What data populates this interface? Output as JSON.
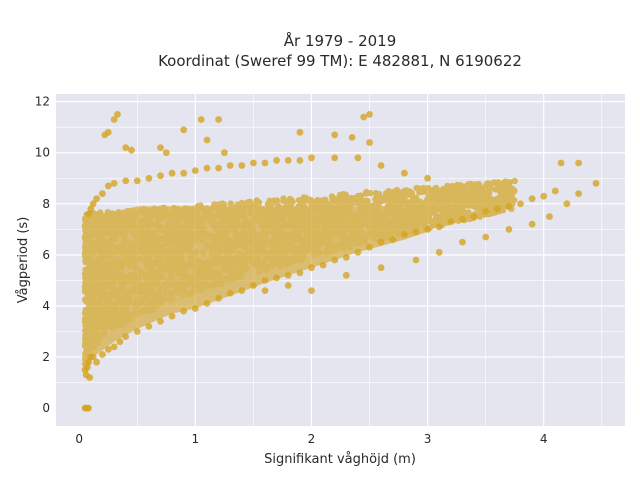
{
  "chart_data": {
    "type": "scatter",
    "title": "År 1979 - 2019",
    "subtitle": "Koordinat (Sweref 99 TM): E 482881, N 6190622",
    "xlabel": "Signifikant våghöjd (m)",
    "ylabel": "Vågperiod (s)",
    "xlim": [
      -0.2,
      4.7
    ],
    "ylim": [
      -0.7,
      12.3
    ],
    "x_ticks": [
      "0",
      "1",
      "2",
      "3",
      "4"
    ],
    "y_ticks": [
      "0",
      "2",
      "4",
      "6",
      "8",
      "10",
      "12"
    ],
    "x_tick_values": [
      0,
      1,
      2,
      3,
      4
    ],
    "y_tick_values": [
      0,
      2,
      4,
      6,
      8,
      10,
      12
    ],
    "grid": true,
    "plot_bgcolor": "#e5e5ef",
    "marker_color": "#d4a422",
    "series": [
      {
        "name": "",
        "x": [
          0.05,
          0.06,
          0.07,
          0.08,
          0.05,
          0.06,
          0.07,
          0.08,
          0.09,
          0.1,
          0.12,
          0.15,
          0.2,
          0.25,
          0.3,
          0.35,
          0.4,
          0.5,
          0.6,
          0.7,
          0.8,
          0.9,
          1.0,
          1.1,
          1.2,
          1.3,
          1.4,
          1.5,
          1.6,
          1.7,
          1.8,
          1.9,
          2.0,
          2.1,
          2.2,
          2.3,
          2.4,
          2.5,
          2.6,
          2.7,
          2.8,
          2.9,
          3.0,
          3.1,
          3.2,
          3.3,
          3.4,
          3.5,
          3.6,
          3.7,
          3.8,
          3.9,
          4.0,
          4.1,
          4.2,
          4.3,
          4.45,
          0.08,
          0.1,
          0.12,
          0.15,
          0.2,
          0.25,
          0.3,
          0.4,
          0.5,
          0.6,
          0.7,
          0.8,
          0.9,
          1.0,
          1.1,
          1.2,
          1.3,
          1.4,
          1.5,
          1.6,
          1.7,
          1.8,
          1.9,
          2.0,
          2.2,
          2.4,
          2.6,
          2.8,
          3.0,
          0.22,
          0.25,
          0.3,
          0.33,
          0.4,
          0.45,
          0.7,
          0.75,
          0.9,
          1.05,
          1.1,
          1.2,
          1.25,
          1.9,
          2.2,
          2.35,
          2.45,
          2.5,
          2.5,
          1.6,
          1.8,
          2.0,
          2.3,
          2.6,
          2.9,
          3.1,
          3.3,
          3.5,
          3.7,
          3.9,
          4.05,
          4.15,
          4.3
        ],
        "y": [
          0.0,
          0.0,
          0.0,
          0.0,
          1.5,
          1.3,
          1.6,
          1.8,
          1.2,
          2.0,
          2.0,
          1.8,
          2.1,
          2.3,
          2.4,
          2.6,
          2.8,
          3.0,
          3.2,
          3.4,
          3.6,
          3.8,
          3.9,
          4.1,
          4.3,
          4.5,
          4.6,
          4.8,
          5.0,
          5.1,
          5.2,
          5.3,
          5.5,
          5.6,
          5.8,
          5.9,
          6.1,
          6.3,
          6.5,
          6.6,
          6.8,
          6.9,
          7.0,
          7.1,
          7.3,
          7.4,
          7.5,
          7.7,
          7.8,
          7.9,
          8.0,
          8.2,
          8.3,
          8.5,
          8.0,
          8.4,
          8.8,
          7.6,
          7.8,
          8.0,
          8.2,
          8.4,
          8.7,
          8.8,
          8.9,
          8.9,
          9.0,
          9.1,
          9.2,
          9.2,
          9.3,
          9.4,
          9.4,
          9.5,
          9.5,
          9.6,
          9.6,
          9.7,
          9.7,
          9.7,
          9.8,
          9.8,
          9.8,
          9.5,
          9.2,
          9.0,
          10.7,
          10.8,
          11.3,
          11.5,
          10.2,
          10.1,
          10.2,
          10.0,
          10.9,
          11.3,
          10.5,
          11.3,
          10.0,
          10.8,
          10.7,
          10.6,
          11.4,
          11.5,
          10.4,
          4.6,
          4.8,
          4.6,
          5.2,
          5.5,
          5.8,
          6.1,
          6.5,
          6.7,
          7.0,
          7.2,
          7.5,
          9.6,
          9.6
        ]
      }
    ]
  }
}
